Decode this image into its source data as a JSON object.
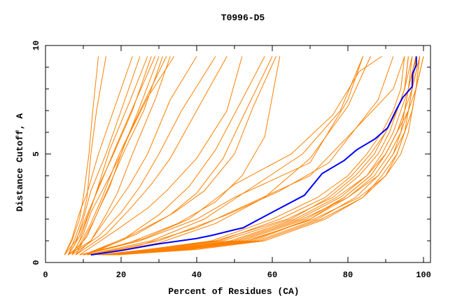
{
  "chart_data": {
    "type": "line",
    "title": "T0996-D5",
    "xlabel": "Percent of Residues (CA)",
    "ylabel": "Distance Cutoff, A",
    "xlim": [
      0,
      102
    ],
    "ylim": [
      0,
      10
    ],
    "xticks": [
      0,
      20,
      40,
      60,
      80,
      100
    ],
    "yticks": [
      0,
      5,
      10
    ],
    "grid": false,
    "colors": {
      "others": "#ff8000",
      "highlight": "#0000ff",
      "axes": "#000000"
    },
    "series": [
      [
        [
          5,
          0.35
        ],
        [
          7,
          1
        ],
        [
          9,
          2
        ],
        [
          10,
          3
        ],
        [
          11.5,
          5
        ],
        [
          12.5,
          7
        ],
        [
          14,
          9.5
        ]
      ],
      [
        [
          6,
          0.35
        ],
        [
          8,
          1.2
        ],
        [
          10,
          2.2
        ],
        [
          11,
          3
        ],
        [
          12,
          5
        ],
        [
          13.5,
          7
        ],
        [
          16,
          9.5
        ]
      ],
      [
        [
          5,
          0.35
        ],
        [
          7,
          1.1
        ],
        [
          9,
          2.3
        ],
        [
          11,
          3.2
        ],
        [
          14,
          5
        ],
        [
          19,
          7.5
        ],
        [
          23,
          9.5
        ]
      ],
      [
        [
          6,
          0.35
        ],
        [
          8,
          0.9
        ],
        [
          10,
          2
        ],
        [
          12,
          3.3
        ],
        [
          16,
          5
        ],
        [
          20,
          7
        ],
        [
          25,
          9.5
        ]
      ],
      [
        [
          7,
          0.35
        ],
        [
          9,
          1
        ],
        [
          11,
          2
        ],
        [
          13,
          3
        ],
        [
          17,
          5.2
        ],
        [
          22,
          7.3
        ],
        [
          27,
          9.5
        ]
      ],
      [
        [
          6,
          0.35
        ],
        [
          9,
          1.2
        ],
        [
          12,
          2.5
        ],
        [
          14,
          3.5
        ],
        [
          18,
          5
        ],
        [
          23,
          7
        ],
        [
          28,
          9.5
        ]
      ],
      [
        [
          5,
          0.35
        ],
        [
          8,
          1
        ],
        [
          11,
          2.2
        ],
        [
          14,
          3.4
        ],
        [
          19,
          5.5
        ],
        [
          24,
          7.5
        ],
        [
          29,
          9.5
        ]
      ],
      [
        [
          7,
          0.35
        ],
        [
          10,
          1.3
        ],
        [
          12,
          2.3
        ],
        [
          15,
          3.3
        ],
        [
          20,
          5
        ],
        [
          25,
          7.2
        ],
        [
          30,
          9.5
        ]
      ],
      [
        [
          8,
          0.35
        ],
        [
          10,
          1
        ],
        [
          13,
          2
        ],
        [
          16,
          3.2
        ],
        [
          21,
          5.2
        ],
        [
          26,
          7
        ],
        [
          31,
          9.5
        ]
      ],
      [
        [
          6,
          0.35
        ],
        [
          9,
          0.8
        ],
        [
          12,
          1.8
        ],
        [
          15,
          3
        ],
        [
          19,
          4.8
        ],
        [
          25,
          7
        ],
        [
          32,
          9.5
        ]
      ],
      [
        [
          7,
          0.35
        ],
        [
          11,
          1.2
        ],
        [
          14,
          2.4
        ],
        [
          17,
          3.5
        ],
        [
          21,
          5.5
        ],
        [
          27,
          7.6
        ],
        [
          34,
          9.5
        ]
      ],
      [
        [
          8,
          0.35
        ],
        [
          12,
          1
        ],
        [
          16,
          2.2
        ],
        [
          19,
          3.2
        ],
        [
          23,
          5
        ],
        [
          29,
          7.5
        ],
        [
          33,
          9.5
        ]
      ],
      [
        [
          6,
          0.35
        ],
        [
          12,
          1
        ],
        [
          18,
          2.5
        ],
        [
          22,
          3.5
        ],
        [
          27,
          5
        ],
        [
          33,
          7.5
        ],
        [
          40,
          9.5
        ]
      ],
      [
        [
          7,
          0.35
        ],
        [
          14,
          1.2
        ],
        [
          20,
          2.3
        ],
        [
          25,
          3.5
        ],
        [
          30,
          5
        ],
        [
          36,
          7
        ],
        [
          45,
          9.5
        ]
      ],
      [
        [
          8,
          0.35
        ],
        [
          16,
          1.3
        ],
        [
          22,
          2.4
        ],
        [
          28,
          3.6
        ],
        [
          33,
          4.8
        ],
        [
          40,
          7
        ],
        [
          48,
          9.5
        ]
      ],
      [
        [
          9,
          0.35
        ],
        [
          18,
          1.4
        ],
        [
          27,
          2.5
        ],
        [
          32,
          3.3
        ],
        [
          40,
          4.8
        ],
        [
          48,
          7
        ],
        [
          52,
          9.5
        ]
      ],
      [
        [
          10,
          0.35
        ],
        [
          20,
          1
        ],
        [
          30,
          2.2
        ],
        [
          38,
          3.5
        ],
        [
          45,
          5.2
        ],
        [
          52,
          7.5
        ],
        [
          58,
          9.5
        ]
      ],
      [
        [
          10,
          0.35
        ],
        [
          22,
          1.2
        ],
        [
          33,
          2.2
        ],
        [
          40,
          3.2
        ],
        [
          47,
          4.8
        ],
        [
          53,
          7
        ],
        [
          60,
          9.5
        ]
      ],
      [
        [
          11,
          0.35
        ],
        [
          24,
          1.3
        ],
        [
          34,
          2.3
        ],
        [
          42,
          3.3
        ],
        [
          50,
          5
        ],
        [
          55,
          7.2
        ],
        [
          61,
          9.5
        ]
      ],
      [
        [
          9,
          0.35
        ],
        [
          22,
          0.9
        ],
        [
          35,
          1.8
        ],
        [
          45,
          2.8
        ],
        [
          52,
          4
        ],
        [
          58,
          5.8
        ],
        [
          62,
          9.5
        ]
      ],
      [
        [
          10,
          0.35
        ],
        [
          25,
          1
        ],
        [
          40,
          2
        ],
        [
          50,
          3
        ],
        [
          60,
          3.8
        ],
        [
          70,
          4.6
        ],
        [
          80,
          7.5
        ],
        [
          84,
          9.5
        ]
      ],
      [
        [
          11,
          0.35
        ],
        [
          28,
          1
        ],
        [
          42,
          2
        ],
        [
          55,
          3.5
        ],
        [
          68,
          5
        ],
        [
          78,
          7
        ],
        [
          84,
          9.5
        ]
      ],
      [
        [
          12,
          0.35
        ],
        [
          30,
          0.9
        ],
        [
          45,
          1.8
        ],
        [
          58,
          3
        ],
        [
          70,
          4.8
        ],
        [
          80,
          7.2
        ],
        [
          86,
          9.5
        ]
      ],
      [
        [
          10,
          0.35
        ],
        [
          26,
          1.1
        ],
        [
          38,
          2
        ],
        [
          50,
          3.6
        ],
        [
          65,
          5
        ],
        [
          76,
          6.8
        ],
        [
          83,
          8.8
        ],
        [
          89,
          9.5
        ]
      ],
      [
        [
          12,
          0.35
        ],
        [
          30,
          1
        ],
        [
          48,
          2.2
        ],
        [
          62,
          3.3
        ],
        [
          75,
          4.6
        ],
        [
          88,
          7.5
        ],
        [
          92,
          9.5
        ]
      ],
      [
        [
          11,
          0.35
        ],
        [
          25,
          0.8
        ],
        [
          40,
          1.6
        ],
        [
          55,
          2.8
        ],
        [
          70,
          4
        ],
        [
          80,
          5.8
        ],
        [
          92,
          8
        ],
        [
          95,
          9.5
        ]
      ],
      [
        [
          14,
          0.35
        ],
        [
          28,
          0.6
        ],
        [
          45,
          1
        ],
        [
          64,
          2
        ],
        [
          76,
          3
        ],
        [
          83,
          4
        ],
        [
          88,
          5
        ],
        [
          91,
          6
        ],
        [
          93,
          7
        ],
        [
          95,
          8
        ],
        [
          96,
          9.5
        ]
      ],
      [
        [
          15,
          0.35
        ],
        [
          32,
          0.6
        ],
        [
          50,
          1
        ],
        [
          67,
          2
        ],
        [
          78,
          3
        ],
        [
          85,
          4
        ],
        [
          89,
          5
        ],
        [
          92,
          6
        ],
        [
          94,
          7
        ],
        [
          96,
          8
        ],
        [
          97,
          9.5
        ]
      ],
      [
        [
          16,
          0.35
        ],
        [
          34,
          0.6
        ],
        [
          52,
          1
        ],
        [
          69,
          2
        ],
        [
          79,
          3
        ],
        [
          86,
          4
        ],
        [
          90,
          5
        ],
        [
          93,
          6
        ],
        [
          95,
          7
        ],
        [
          96,
          8
        ],
        [
          98,
          9.5
        ]
      ],
      [
        [
          17,
          0.35
        ],
        [
          36,
          0.6
        ],
        [
          54,
          1
        ],
        [
          70,
          2
        ],
        [
          80,
          3
        ],
        [
          87,
          4
        ],
        [
          91,
          5
        ],
        [
          94,
          6
        ],
        [
          95,
          7
        ],
        [
          97,
          8
        ],
        [
          98,
          9.5
        ]
      ],
      [
        [
          18,
          0.35
        ],
        [
          38,
          0.6
        ],
        [
          56,
          1
        ],
        [
          72,
          2
        ],
        [
          82,
          3
        ],
        [
          88,
          4
        ],
        [
          92,
          5
        ],
        [
          94,
          6
        ],
        [
          96,
          7
        ],
        [
          97,
          8
        ],
        [
          99,
          9.5
        ]
      ],
      [
        [
          16,
          0.35
        ],
        [
          33,
          0.6
        ],
        [
          51,
          1
        ],
        [
          68,
          2
        ],
        [
          80,
          3
        ],
        [
          88,
          4
        ],
        [
          92,
          5
        ],
        [
          95,
          6
        ],
        [
          97,
          7
        ],
        [
          98,
          8
        ],
        [
          99,
          9.5
        ]
      ],
      [
        [
          15,
          0.35
        ],
        [
          30,
          0.6
        ],
        [
          47,
          1
        ],
        [
          65,
          2
        ],
        [
          75,
          3
        ],
        [
          82,
          4
        ],
        [
          87,
          5
        ],
        [
          90,
          6
        ],
        [
          93,
          7
        ],
        [
          95,
          8
        ],
        [
          97,
          9.5
        ]
      ],
      [
        [
          17,
          0.35
        ],
        [
          35,
          0.6
        ],
        [
          53,
          1
        ],
        [
          71,
          2
        ],
        [
          83,
          3
        ],
        [
          90,
          4
        ],
        [
          93,
          5
        ],
        [
          95,
          6
        ],
        [
          97,
          7
        ],
        [
          98,
          8
        ],
        [
          100,
          9.5
        ]
      ],
      [
        [
          16,
          0.35
        ],
        [
          31,
          0.6
        ],
        [
          49,
          1
        ],
        [
          66,
          2
        ],
        [
          77,
          3
        ],
        [
          85,
          4
        ],
        [
          90,
          5
        ],
        [
          93,
          6
        ],
        [
          95,
          7
        ],
        [
          96,
          8
        ],
        [
          98,
          9.5
        ]
      ],
      [
        [
          18,
          0.35
        ],
        [
          37,
          0.6
        ],
        [
          55,
          1
        ],
        [
          70,
          2
        ],
        [
          79,
          3
        ],
        [
          86,
          4
        ],
        [
          90,
          5
        ],
        [
          93,
          6
        ],
        [
          96,
          7
        ],
        [
          97,
          8
        ],
        [
          99,
          9.5
        ]
      ],
      [
        [
          15,
          0.35
        ],
        [
          29,
          0.6
        ],
        [
          46,
          1
        ],
        [
          62,
          2
        ],
        [
          74,
          3
        ],
        [
          81,
          4
        ],
        [
          86,
          5
        ],
        [
          90,
          6
        ],
        [
          93,
          7
        ],
        [
          95,
          8
        ],
        [
          96,
          9.5
        ]
      ],
      [
        [
          17,
          0.35
        ],
        [
          38,
          0.6
        ],
        [
          57,
          1
        ],
        [
          73,
          2
        ],
        [
          84,
          3
        ],
        [
          89,
          4
        ],
        [
          93,
          5
        ],
        [
          95,
          6
        ],
        [
          96,
          7
        ],
        [
          98,
          8
        ],
        [
          99,
          9.5
        ]
      ],
      [
        [
          14,
          0.35
        ],
        [
          27,
          0.6
        ],
        [
          44,
          1
        ],
        [
          60,
          2
        ],
        [
          72,
          3
        ],
        [
          80,
          4
        ],
        [
          85,
          5
        ],
        [
          89,
          6
        ],
        [
          92,
          7
        ],
        [
          94,
          8
        ],
        [
          95,
          9.5
        ]
      ],
      [
        [
          19,
          0.35
        ],
        [
          40,
          0.6
        ],
        [
          58,
          1
        ],
        [
          74,
          2
        ],
        [
          84,
          3
        ],
        [
          90,
          4
        ],
        [
          94,
          5
        ],
        [
          96,
          6
        ],
        [
          97,
          7
        ],
        [
          98,
          8
        ],
        [
          100,
          9.5
        ]
      ]
    ],
    "highlight": [
      [
        12,
        0.35
      ],
      [
        20,
        0.55
      ],
      [
        29.6,
        0.85
      ],
      [
        39.8,
        1.1
      ],
      [
        44,
        1.25
      ],
      [
        49.8,
        1.5
      ],
      [
        52.3,
        1.6
      ],
      [
        59.8,
        2.3
      ],
      [
        68.5,
        3.1
      ],
      [
        73.2,
        4.1
      ],
      [
        79,
        4.7
      ],
      [
        82.4,
        5.2
      ],
      [
        87.2,
        5.7
      ],
      [
        90.5,
        6.2
      ],
      [
        92.7,
        7.0
      ],
      [
        94.5,
        7.6
      ],
      [
        97,
        8.1
      ],
      [
        97.1,
        8.7
      ],
      [
        98.1,
        9.1
      ],
      [
        98.1,
        9.5
      ]
    ]
  }
}
